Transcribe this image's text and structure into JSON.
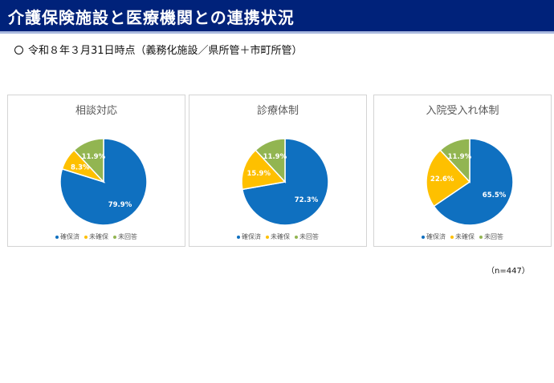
{
  "header": {
    "title": "介護保険施設と医療機関との連携状況",
    "subtitle": "令和８年３月31日時点（義務化施設／県所管＋市町所管）"
  },
  "note": "（n=447）",
  "colors": {
    "確保済": "#0f70c0",
    "未確保": "#fec000",
    "未回答": "#92b551"
  },
  "chart_data": [
    {
      "type": "pie",
      "title": "相談対応",
      "labels": [
        "確保済",
        "未確保",
        "未回答"
      ],
      "values": [
        79.9,
        8.3,
        11.9
      ],
      "display_labels": [
        "79.9%",
        "8.3%",
        "11.9%"
      ],
      "legend": "bottom"
    },
    {
      "type": "pie",
      "title": "診療体制",
      "labels": [
        "確保済",
        "未確保",
        "未回答"
      ],
      "values": [
        72.3,
        15.9,
        11.9
      ],
      "display_labels": [
        "72.3%",
        "15.9%",
        "11.9%"
      ],
      "legend": "bottom"
    },
    {
      "type": "pie",
      "title": "入院受入れ体制",
      "labels": [
        "確保済",
        "未確保",
        "未回答"
      ],
      "values": [
        65.5,
        22.6,
        11.9
      ],
      "display_labels": [
        "65.5%",
        "22.6%",
        "11.9%"
      ],
      "legend": "bottom"
    }
  ]
}
